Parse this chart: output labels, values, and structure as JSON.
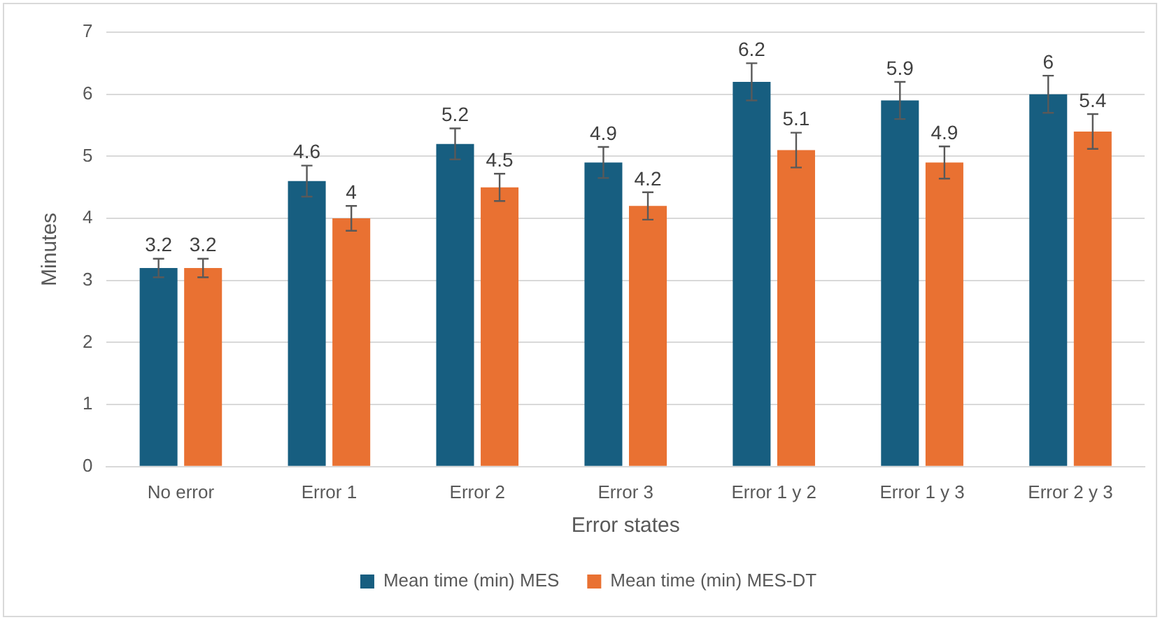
{
  "chart_data": {
    "type": "bar",
    "xlabel": "Error states",
    "ylabel": "Minutes",
    "categories": [
      "No error",
      "Error 1",
      "Error 2",
      "Error 3",
      "Error 1 y 2",
      "Error 1 y 3",
      "Error 2 y 3"
    ],
    "series": [
      {
        "name": "Mean time (min) MES",
        "color": "#175e80",
        "values": [
          3.2,
          4.6,
          5.2,
          4.9,
          6.2,
          5.9,
          6
        ],
        "errors": [
          0.15,
          0.25,
          0.25,
          0.25,
          0.3,
          0.3,
          0.3
        ]
      },
      {
        "name": "Mean time (min) MES-DT",
        "color": "#e97132",
        "values": [
          3.2,
          4,
          4.5,
          4.2,
          5.1,
          4.9,
          5.4
        ],
        "errors": [
          0.15,
          0.2,
          0.22,
          0.22,
          0.28,
          0.26,
          0.28
        ]
      }
    ],
    "ylim": [
      0,
      7
    ],
    "yticks": [
      0,
      1,
      2,
      3,
      4,
      5,
      6,
      7
    ],
    "grid": "y",
    "legend": "bottom",
    "data_labels": true
  }
}
